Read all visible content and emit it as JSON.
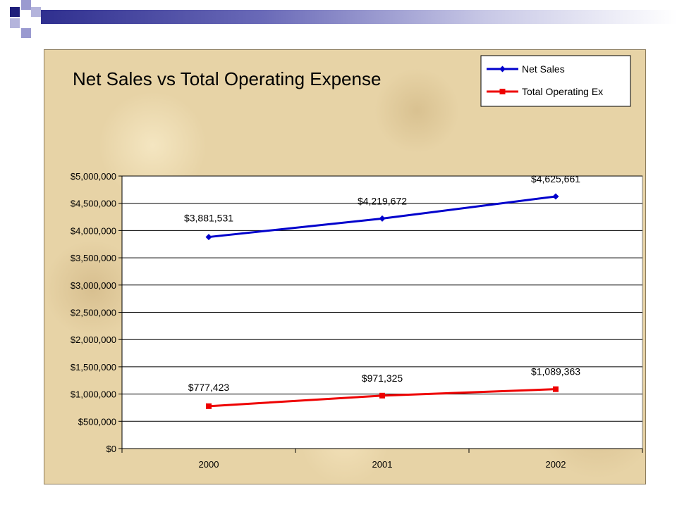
{
  "colors": {
    "net_sales": "#0000cc",
    "total_operating": "#ee0000",
    "header_dark": "#1e1e7a",
    "header_light": "#9a9ad0"
  },
  "chart_data": {
    "type": "line",
    "title": "Net Sales vs Total Operating Expense",
    "x": [
      "2000",
      "2001",
      "2002"
    ],
    "ylim": [
      0,
      5000000
    ],
    "ytick_step": 500000,
    "ytick_labels": [
      "$0",
      "$500,000",
      "$1,000,000",
      "$1,500,000",
      "$2,000,000",
      "$2,500,000",
      "$3,000,000",
      "$3,500,000",
      "$4,000,000",
      "$4,500,000",
      "$5,000,000"
    ],
    "grid": true,
    "legend_position": "top-right",
    "series": [
      {
        "name": "Net Sales",
        "values": [
          3881531,
          4219672,
          4625661
        ],
        "labels": [
          "$3,881,531",
          "$4,219,672",
          "$4,625,661"
        ],
        "marker": "diamond"
      },
      {
        "name": "Total Operating Ex",
        "values": [
          777423,
          971325,
          1089363
        ],
        "labels": [
          "$777,423",
          "$971,325",
          "$1,089,363"
        ],
        "marker": "square"
      }
    ]
  }
}
